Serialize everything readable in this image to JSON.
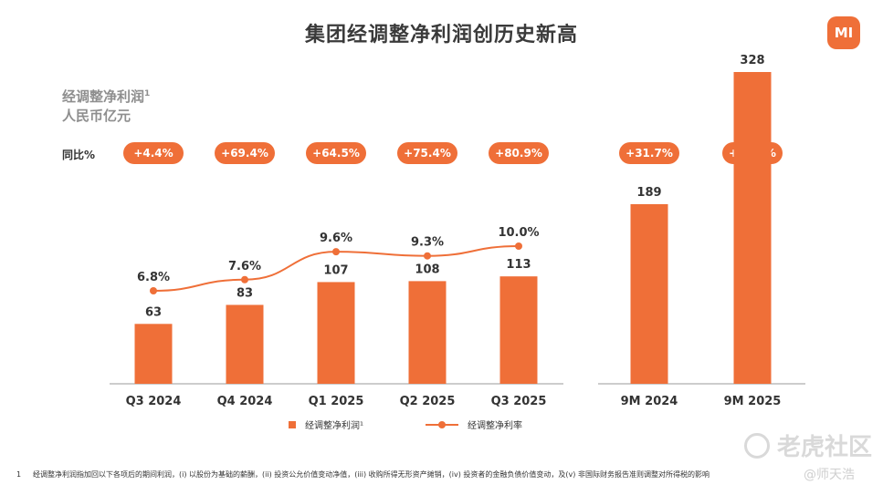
{
  "page": {
    "title": "集团经调整净利润创历史新高",
    "logo_text": "MI",
    "y_title_line1": "经调整净利润",
    "y_title_sup": "1",
    "y_title_line2": "人民币亿元",
    "yoy_label": "同比%",
    "footnote_num": "1",
    "footnote": "经调整净利润指加回以下各项后的期间利润，(i) 以股份为基础的薪酬，(ii) 投资公允价值变动净值，(iii) 收购所得无形资产摊销，(iv) 投资者的金融负债价值变动，及(v) 非国际财务报告准则调整对所得税的影响",
    "watermark": "老虎社区",
    "watermark2": "@师天浩"
  },
  "colors": {
    "accent": "#ef6f38",
    "axis": "#9a9a9a"
  },
  "chart_data": [
    {
      "type": "bar+line",
      "categories": [
        "Q3 2024",
        "Q4 2024",
        "Q1 2025",
        "Q2 2025",
        "Q3 2025"
      ],
      "series": [
        {
          "name": "经调整净利润¹",
          "type": "bar",
          "values": [
            63,
            83,
            107,
            108,
            113
          ]
        },
        {
          "name": "经调整净利率",
          "type": "line",
          "values": [
            6.8,
            7.6,
            9.6,
            9.3,
            10.0
          ],
          "labels": [
            "6.8%",
            "7.6%",
            "9.6%",
            "9.3%",
            "10.0%"
          ]
        }
      ],
      "yoy": [
        "+4.4%",
        "+69.4%",
        "+64.5%",
        "+75.4%",
        "+80.9%"
      ],
      "legend_position": "bottom"
    },
    {
      "type": "bar",
      "categories": [
        "9M 2024",
        "9M 2025"
      ],
      "values": [
        189,
        328
      ],
      "yoy": [
        "+31.7%",
        "+73.5%"
      ]
    }
  ]
}
